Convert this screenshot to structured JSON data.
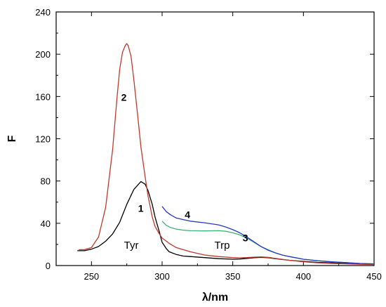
{
  "chart_data": {
    "type": "line",
    "xlabel": "λ/nm",
    "ylabel": "F",
    "xlim": [
      225,
      450
    ],
    "ylim": [
      0,
      240
    ],
    "xticks": [
      250,
      300,
      350,
      400,
      450
    ],
    "yticks": [
      0,
      40,
      80,
      120,
      160,
      200,
      240
    ],
    "grid": false,
    "series": [
      {
        "name": "1",
        "color": "#000000",
        "x": [
          240,
          245,
          250,
          255,
          260,
          265,
          270,
          275,
          280,
          285,
          288,
          290,
          293,
          295,
          298,
          300,
          303,
          305,
          310,
          315,
          320,
          330,
          340,
          350,
          355,
          360,
          365,
          370,
          375,
          380,
          390,
          400,
          410,
          420,
          430,
          440,
          450
        ],
        "y": [
          14,
          14,
          15.5,
          18,
          23,
          30,
          41,
          58,
          72,
          79.5,
          77,
          71,
          58,
          46,
          32,
          22,
          16,
          13,
          10.5,
          9,
          8.5,
          7.5,
          6.5,
          6,
          6.2,
          6.8,
          7.4,
          7.8,
          7.4,
          6.5,
          5,
          4,
          3,
          2.5,
          2,
          1.5,
          1
        ]
      },
      {
        "name": "2",
        "color": "#c0392b",
        "x": [
          241,
          245,
          250,
          255,
          260,
          265,
          268,
          270,
          272,
          274,
          275,
          276,
          278,
          280,
          283,
          285,
          288,
          290,
          293,
          295,
          298,
          300,
          305,
          310,
          320,
          330,
          340,
          350,
          355,
          360,
          365,
          370,
          375,
          380,
          390,
          400,
          410,
          420,
          430,
          440,
          450
        ],
        "y": [
          15,
          15,
          17,
          27,
          55,
          110,
          158,
          186,
          202,
          208.5,
          210,
          208,
          198,
          176,
          138,
          112,
          84,
          66,
          46,
          37,
          30,
          26,
          21,
          17,
          13,
          10,
          8.5,
          7.5,
          7.3,
          7.5,
          8,
          8.2,
          7.8,
          6.8,
          5,
          3.6,
          2.6,
          2,
          1.6,
          1.2,
          1
        ]
      },
      {
        "name": "3",
        "color": "#3cb371",
        "x": [
          300,
          303,
          306,
          310,
          315,
          320,
          330,
          340,
          345,
          350,
          355,
          360,
          365,
          370,
          375,
          380,
          385,
          390,
          400,
          410,
          420,
          430,
          440,
          450
        ],
        "y": [
          42,
          38,
          36,
          34.5,
          33.5,
          33,
          32.8,
          33,
          32.5,
          31,
          29,
          26,
          22,
          18,
          15,
          12,
          10,
          8.5,
          6,
          4.5,
          3.5,
          2.8,
          2,
          1.5
        ]
      },
      {
        "name": "4",
        "color": "#2838c8",
        "x": [
          300,
          303,
          306,
          310,
          315,
          320,
          330,
          340,
          345,
          350,
          355,
          360,
          365,
          370,
          375,
          380,
          385,
          390,
          400,
          410,
          420,
          430,
          440,
          450
        ],
        "y": [
          56,
          51,
          48,
          45,
          43.5,
          42,
          40.5,
          38.5,
          36.5,
          34,
          31,
          27,
          22.5,
          18,
          14.5,
          12,
          10,
          8.5,
          6,
          4.5,
          3.5,
          2.8,
          2,
          1.5
        ]
      }
    ],
    "annotations": [
      {
        "text": "1",
        "x": 283,
        "y": 51,
        "kind": "curve-number"
      },
      {
        "text": "2",
        "x": 271,
        "y": 156,
        "kind": "curve-number"
      },
      {
        "text": "3",
        "x": 357,
        "y": 23,
        "kind": "curve-number"
      },
      {
        "text": "4",
        "x": 316,
        "y": 45,
        "kind": "curve-number"
      },
      {
        "text": "Tyr",
        "x": 273,
        "y": 16,
        "kind": "band-label"
      },
      {
        "text": "Trp",
        "x": 337,
        "y": 16,
        "kind": "band-label"
      }
    ]
  }
}
